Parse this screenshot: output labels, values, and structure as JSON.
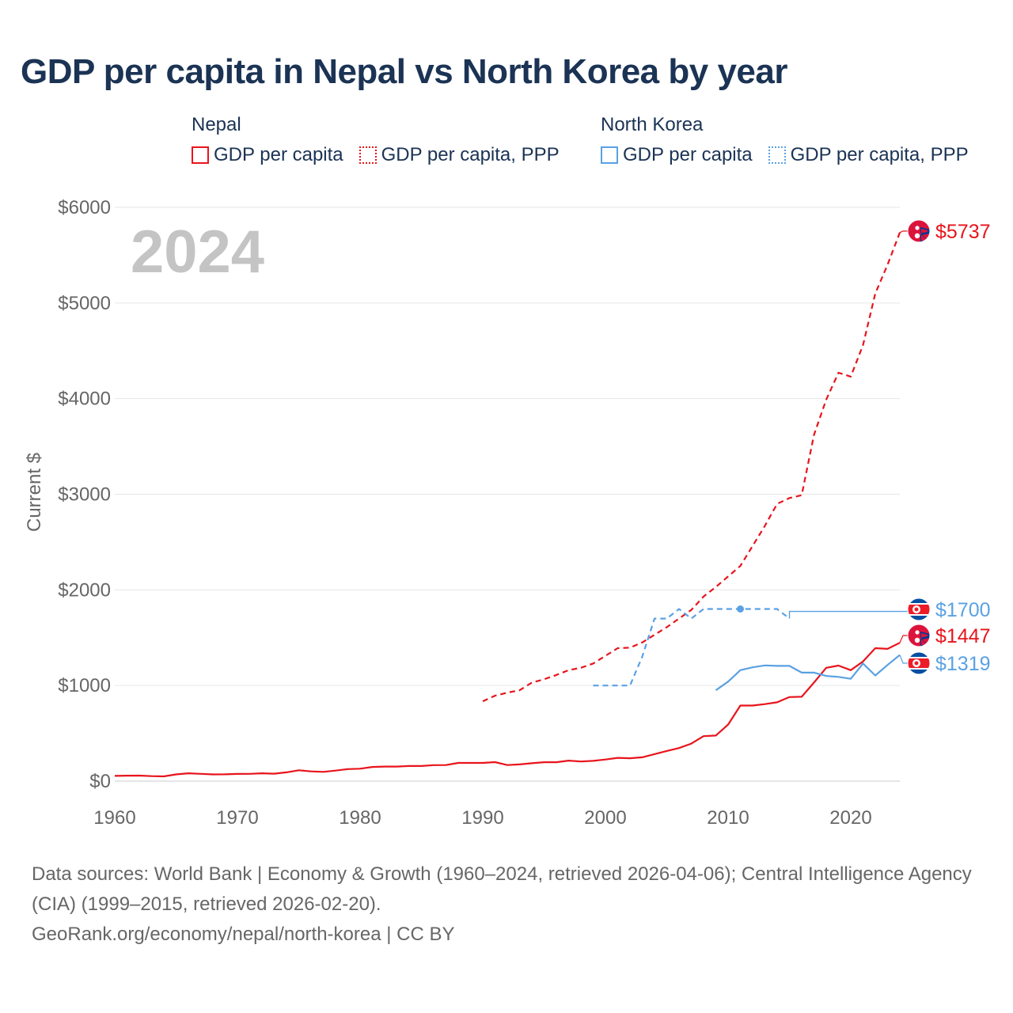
{
  "title": "GDP per capita in Nepal vs North Korea by year",
  "legend": {
    "nepal": {
      "name": "Nepal",
      "gdp": "GDP per capita",
      "ppp": "GDP per capita, PPP"
    },
    "nk": {
      "name": "North Korea",
      "gdp": "GDP per capita",
      "ppp": "GDP per capita, PPP"
    }
  },
  "year_label": "2024",
  "footer": {
    "sources": "Data sources: World Bank | Economy & Growth (1960–2024, retrieved 2026-04-06); Central Intelligence Agency (CIA) (1999–2015, retrieved 2026-02-20).",
    "site": "GeoRank.org/economy/nepal/north-korea | CC BY"
  },
  "colors": {
    "nepal": "#e8141c",
    "north_korea": "#5aa1e3",
    "grid": "#e6e6e6",
    "axis_text": "#666666",
    "title": "#1b3354"
  },
  "chart_data": {
    "type": "line",
    "ylabel": "Current $",
    "xlim": [
      1960,
      2024
    ],
    "ylim": [
      0,
      6000
    ],
    "x_ticks": [
      1960,
      1970,
      1980,
      1990,
      2000,
      2010,
      2020
    ],
    "y_ticks": [
      0,
      1000,
      2000,
      3000,
      4000,
      5000,
      6000
    ],
    "y_tick_labels": [
      "$0",
      "$1000",
      "$2000",
      "$3000",
      "$4000",
      "$5000",
      "$6000"
    ],
    "series": [
      {
        "name": "Nepal GDP per capita",
        "color": "#e8141c",
        "dash": false,
        "end_label": "$1447",
        "flag": "nepal",
        "points": [
          [
            1960,
            55
          ],
          [
            1961,
            57
          ],
          [
            1962,
            58
          ],
          [
            1963,
            52
          ],
          [
            1964,
            50
          ],
          [
            1965,
            70
          ],
          [
            1966,
            82
          ],
          [
            1967,
            76
          ],
          [
            1968,
            70
          ],
          [
            1969,
            71
          ],
          [
            1970,
            75
          ],
          [
            1971,
            76
          ],
          [
            1972,
            82
          ],
          [
            1973,
            78
          ],
          [
            1974,
            92
          ],
          [
            1975,
            113
          ],
          [
            1976,
            102
          ],
          [
            1977,
            97
          ],
          [
            1978,
            110
          ],
          [
            1979,
            126
          ],
          [
            1980,
            130
          ],
          [
            1981,
            148
          ],
          [
            1982,
            152
          ],
          [
            1983,
            152
          ],
          [
            1984,
            158
          ],
          [
            1985,
            158
          ],
          [
            1986,
            167
          ],
          [
            1987,
            168
          ],
          [
            1988,
            190
          ],
          [
            1989,
            190
          ],
          [
            1990,
            190
          ],
          [
            1991,
            199
          ],
          [
            1992,
            168
          ],
          [
            1993,
            175
          ],
          [
            1994,
            187
          ],
          [
            1995,
            198
          ],
          [
            1996,
            198
          ],
          [
            1997,
            214
          ],
          [
            1998,
            205
          ],
          [
            1999,
            212
          ],
          [
            2000,
            226
          ],
          [
            2001,
            243
          ],
          [
            2002,
            239
          ],
          [
            2003,
            249
          ],
          [
            2004,
            282
          ],
          [
            2005,
            315
          ],
          [
            2006,
            346
          ],
          [
            2007,
            392
          ],
          [
            2008,
            470
          ],
          [
            2009,
            477
          ],
          [
            2010,
            591
          ],
          [
            2011,
            790
          ],
          [
            2012,
            790
          ],
          [
            2013,
            805
          ],
          [
            2014,
            824
          ],
          [
            2015,
            879
          ],
          [
            2016,
            882
          ],
          [
            2017,
            1030
          ],
          [
            2018,
            1185
          ],
          [
            2019,
            1208
          ],
          [
            2020,
            1160
          ],
          [
            2021,
            1251
          ],
          [
            2022,
            1390
          ],
          [
            2023,
            1383
          ],
          [
            2024,
            1447
          ]
        ]
      },
      {
        "name": "Nepal GDP per capita, PPP",
        "color": "#e8141c",
        "dash": true,
        "end_label": "$5737",
        "flag": "nepal",
        "points": [
          [
            1990,
            835
          ],
          [
            1991,
            893
          ],
          [
            1992,
            925
          ],
          [
            1993,
            950
          ],
          [
            1994,
            1030
          ],
          [
            1995,
            1065
          ],
          [
            1996,
            1110
          ],
          [
            1997,
            1160
          ],
          [
            1998,
            1185
          ],
          [
            1999,
            1230
          ],
          [
            2000,
            1310
          ],
          [
            2001,
            1390
          ],
          [
            2002,
            1395
          ],
          [
            2003,
            1450
          ],
          [
            2004,
            1530
          ],
          [
            2005,
            1610
          ],
          [
            2006,
            1700
          ],
          [
            2007,
            1790
          ],
          [
            2008,
            1930
          ],
          [
            2009,
            2030
          ],
          [
            2010,
            2140
          ],
          [
            2011,
            2250
          ],
          [
            2012,
            2460
          ],
          [
            2013,
            2670
          ],
          [
            2014,
            2900
          ],
          [
            2015,
            2960
          ],
          [
            2016,
            2990
          ],
          [
            2017,
            3620
          ],
          [
            2018,
            3990
          ],
          [
            2019,
            4270
          ],
          [
            2020,
            4230
          ],
          [
            2021,
            4560
          ],
          [
            2022,
            5100
          ],
          [
            2023,
            5400
          ],
          [
            2024,
            5737
          ]
        ]
      },
      {
        "name": "North Korea GDP per capita",
        "color": "#5aa1e3",
        "dash": false,
        "end_label": "$1319",
        "flag": "north-korea",
        "points": [
          [
            2009,
            950
          ],
          [
            2010,
            1040
          ],
          [
            2011,
            1160
          ],
          [
            2012,
            1190
          ],
          [
            2013,
            1210
          ],
          [
            2014,
            1205
          ],
          [
            2015,
            1205
          ],
          [
            2016,
            1135
          ],
          [
            2017,
            1135
          ],
          [
            2018,
            1100
          ],
          [
            2019,
            1090
          ],
          [
            2020,
            1070
          ],
          [
            2021,
            1230
          ],
          [
            2022,
            1105
          ],
          [
            2023,
            1215
          ],
          [
            2024,
            1319
          ]
        ]
      },
      {
        "name": "North Korea GDP per capita, PPP",
        "color": "#5aa1e3",
        "dash": true,
        "end_label": "$1700",
        "flag": "north-korea",
        "points": [
          [
            1999,
            1000
          ],
          [
            2000,
            1000
          ],
          [
            2001,
            1000
          ],
          [
            2002,
            1000
          ],
          [
            2003,
            1300
          ],
          [
            2004,
            1700
          ],
          [
            2005,
            1700
          ],
          [
            2006,
            1800
          ],
          [
            2007,
            1700
          ],
          [
            2008,
            1800
          ],
          [
            2009,
            1800
          ],
          [
            2010,
            1800
          ],
          [
            2011,
            1800
          ],
          [
            2012,
            1800
          ],
          [
            2013,
            1800
          ],
          [
            2014,
            1800
          ],
          [
            2015,
            1700
          ]
        ],
        "highlight_point": [
          2011,
          1800
        ],
        "carry_forward_value": 1775
      }
    ]
  }
}
